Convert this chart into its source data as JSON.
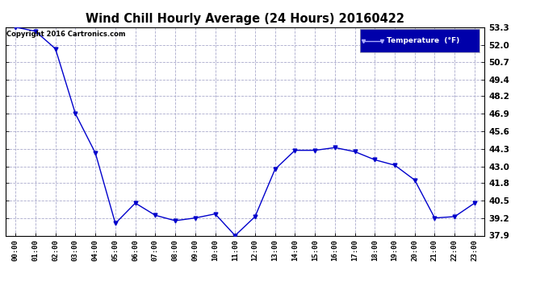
{
  "title": "Wind Chill Hourly Average (24 Hours) 20160422",
  "copyright": "Copyright 2016 Cartronics.com",
  "legend_label": "Temperature  (°F)",
  "x_labels": [
    "00:00",
    "01:00",
    "02:00",
    "03:00",
    "04:00",
    "05:00",
    "06:00",
    "07:00",
    "08:00",
    "09:00",
    "10:00",
    "11:00",
    "12:00",
    "13:00",
    "14:00",
    "15:00",
    "16:00",
    "17:00",
    "18:00",
    "19:00",
    "20:00",
    "21:00",
    "22:00",
    "23:00"
  ],
  "y_values": [
    53.3,
    53.0,
    51.7,
    46.9,
    44.0,
    38.8,
    40.3,
    39.4,
    39.0,
    39.2,
    39.5,
    37.9,
    39.3,
    42.8,
    44.2,
    44.2,
    44.4,
    44.1,
    43.5,
    43.1,
    42.0,
    39.2,
    39.3,
    40.3
  ],
  "ylim_min": 37.9,
  "ylim_max": 53.3,
  "yticks": [
    37.9,
    39.2,
    40.5,
    41.8,
    43.0,
    44.3,
    45.6,
    46.9,
    48.2,
    49.4,
    50.7,
    52.0,
    53.3
  ],
  "line_color": "#0000cc",
  "marker_color": "#0000cc",
  "bg_color": "#ffffff",
  "plot_bg_color": "#ffffff",
  "grid_color": "#aaaacc",
  "title_color": "#000000",
  "tick_label_color": "#000000",
  "legend_bg": "#0000aa",
  "legend_text_color": "#ffffff",
  "copyright_color": "#000000"
}
